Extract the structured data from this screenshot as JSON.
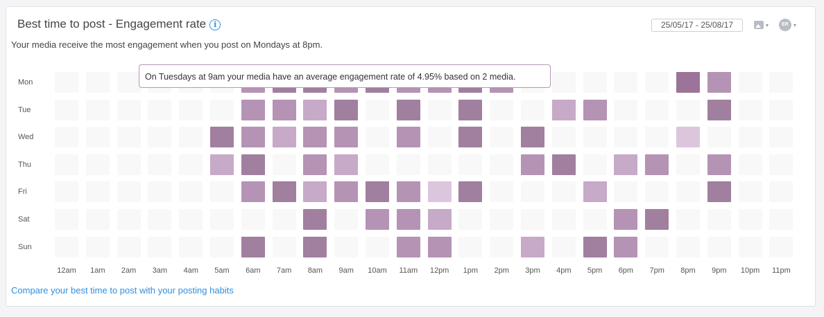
{
  "header": {
    "title": "Best time to post - Engagement rate",
    "info_icon": "info-icon",
    "date_range": "25/05/17 - 25/08/17",
    "media_icon": "image-icon",
    "avatar_initials": "ER",
    "caret": "▾"
  },
  "summary": "Your media receive the most engagement when you post on Mondays at 8pm.",
  "tooltip": "On Tuesdays at 9am your media have an average engagement rate of 4.95% based on 2 media.",
  "footer_link": "Compare your best time to post with your posting habits",
  "colors": {
    "empty": "#f8f8f9",
    "light": "#dcc6dd",
    "medium_light": "#c7a9c8",
    "medium": "#b593b5",
    "dark": "#a17f9f",
    "darkest": "#9c7399"
  },
  "chart_data": {
    "type": "heatmap",
    "days": [
      "Mon",
      "Tue",
      "Wed",
      "Thu",
      "Fri",
      "Sat",
      "Sun"
    ],
    "hours": [
      "12am",
      "1am",
      "2am",
      "3am",
      "4am",
      "5am",
      "6am",
      "7am",
      "8am",
      "9am",
      "10am",
      "11am",
      "12pm",
      "1pm",
      "2pm",
      "3pm",
      "4pm",
      "5pm",
      "6pm",
      "7pm",
      "8pm",
      "9pm",
      "10pm",
      "11pm"
    ],
    "intensity_scale": "0 = no data, 1 = lowest, 5 = highest",
    "values": [
      [
        0,
        0,
        0,
        0,
        0,
        0,
        3,
        4,
        4,
        3,
        4,
        3,
        3,
        4,
        3,
        0,
        0,
        0,
        0,
        0,
        5,
        3,
        0,
        0
      ],
      [
        0,
        0,
        0,
        0,
        0,
        0,
        3,
        3,
        2,
        4,
        0,
        4,
        0,
        4,
        0,
        0,
        2,
        3,
        0,
        0,
        0,
        4,
        0,
        0
      ],
      [
        0,
        0,
        0,
        0,
        0,
        4,
        3,
        2,
        3,
        3,
        0,
        3,
        0,
        4,
        0,
        4,
        0,
        0,
        0,
        0,
        1,
        0,
        0,
        0
      ],
      [
        0,
        0,
        0,
        0,
        0,
        2,
        4,
        0,
        3,
        2,
        0,
        0,
        0,
        0,
        0,
        3,
        4,
        0,
        2,
        3,
        0,
        3,
        0,
        0
      ],
      [
        0,
        0,
        0,
        0,
        0,
        0,
        3,
        4,
        2,
        3,
        4,
        3,
        1,
        4,
        0,
        0,
        0,
        2,
        0,
        0,
        0,
        4,
        0,
        0
      ],
      [
        0,
        0,
        0,
        0,
        0,
        0,
        0,
        0,
        4,
        0,
        3,
        3,
        2,
        0,
        0,
        0,
        0,
        0,
        3,
        4,
        0,
        0,
        0,
        0
      ],
      [
        0,
        0,
        0,
        0,
        0,
        0,
        4,
        0,
        4,
        0,
        0,
        3,
        3,
        0,
        0,
        2,
        0,
        4,
        3,
        0,
        0,
        0,
        0,
        0
      ]
    ]
  }
}
